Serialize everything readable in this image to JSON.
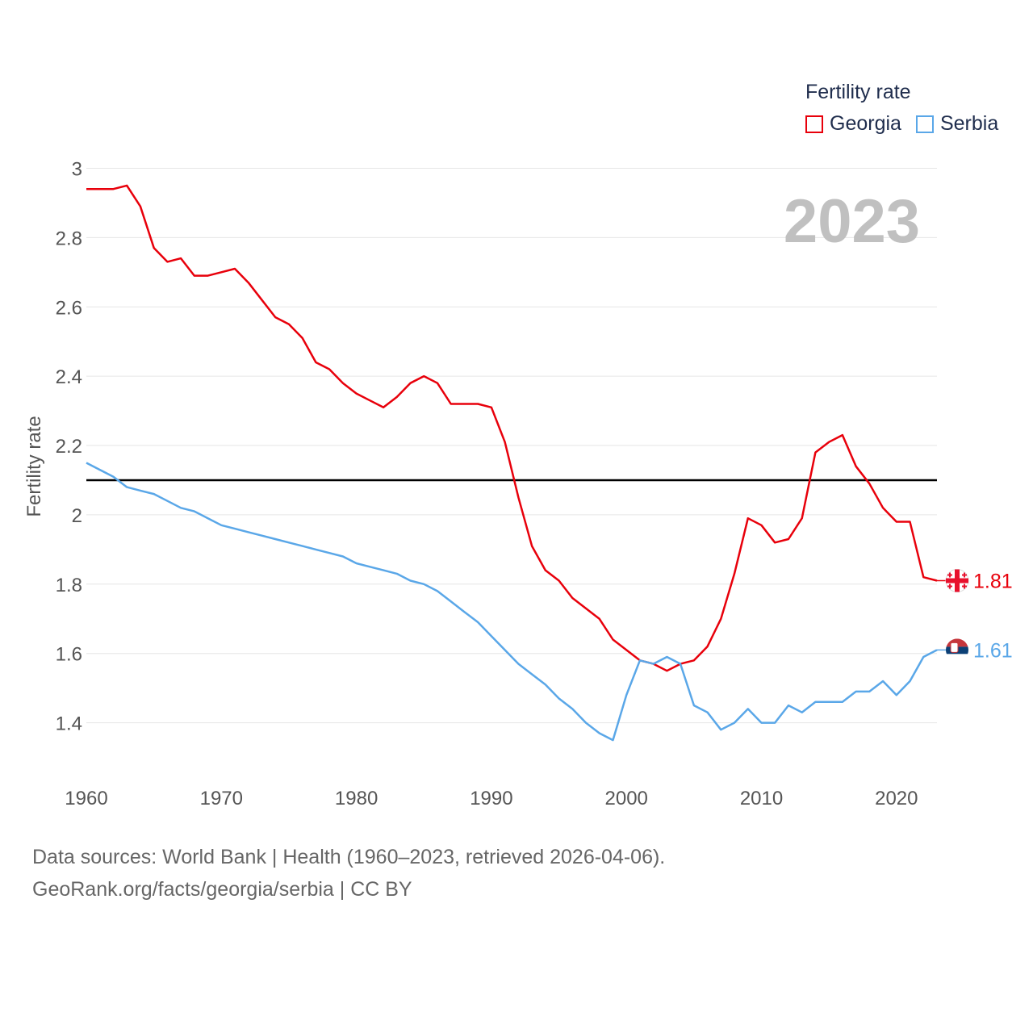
{
  "chart_data": {
    "type": "line",
    "title": "",
    "xlabel": "",
    "ylabel": "Fertility rate",
    "xlim": [
      1960,
      2023
    ],
    "ylim": [
      1.25,
      3.05
    ],
    "xticks": [
      1960,
      1970,
      1980,
      1990,
      2000,
      2010,
      2020
    ],
    "yticks": [
      1.4,
      1.6,
      1.8,
      2,
      2.2,
      2.4,
      2.6,
      2.8,
      3
    ],
    "ytick_labels": [
      "1.4",
      "1.6",
      "1.8",
      "2",
      "2.2",
      "2.4",
      "2.6",
      "2.8",
      "3"
    ],
    "reference_line": 2.1,
    "year_label": "2023",
    "legend_title": "Fertility rate",
    "x": [
      1960,
      1961,
      1962,
      1963,
      1964,
      1965,
      1966,
      1967,
      1968,
      1969,
      1970,
      1971,
      1972,
      1973,
      1974,
      1975,
      1976,
      1977,
      1978,
      1979,
      1980,
      1981,
      1982,
      1983,
      1984,
      1985,
      1986,
      1987,
      1988,
      1989,
      1990,
      1991,
      1992,
      1993,
      1994,
      1995,
      1996,
      1997,
      1998,
      1999,
      2000,
      2001,
      2002,
      2003,
      2004,
      2005,
      2006,
      2007,
      2008,
      2009,
      2010,
      2011,
      2012,
      2013,
      2014,
      2015,
      2016,
      2017,
      2018,
      2019,
      2020,
      2021,
      2022,
      2023
    ],
    "series": [
      {
        "name": "Georgia",
        "color": "#e8000b",
        "end_label": "1.81",
        "values": [
          2.94,
          2.94,
          2.94,
          2.95,
          2.89,
          2.77,
          2.73,
          2.74,
          2.69,
          2.69,
          2.7,
          2.71,
          2.67,
          2.62,
          2.57,
          2.55,
          2.51,
          2.44,
          2.42,
          2.38,
          2.35,
          2.33,
          2.31,
          2.34,
          2.38,
          2.4,
          2.38,
          2.32,
          2.32,
          2.32,
          2.31,
          2.21,
          2.05,
          1.91,
          1.84,
          1.81,
          1.76,
          1.73,
          1.7,
          1.64,
          1.61,
          1.58,
          1.57,
          1.55,
          1.57,
          1.58,
          1.62,
          1.7,
          1.83,
          1.99,
          1.97,
          1.92,
          1.93,
          1.99,
          2.18,
          2.21,
          2.23,
          2.14,
          2.09,
          2.02,
          1.98,
          1.98,
          1.82,
          1.81
        ]
      },
      {
        "name": "Serbia",
        "color": "#5aa7e8",
        "end_label": "1.61",
        "values": [
          2.15,
          2.13,
          2.11,
          2.08,
          2.07,
          2.06,
          2.04,
          2.02,
          2.01,
          1.99,
          1.97,
          1.96,
          1.95,
          1.94,
          1.93,
          1.92,
          1.91,
          1.9,
          1.89,
          1.88,
          1.86,
          1.85,
          1.84,
          1.83,
          1.81,
          1.8,
          1.78,
          1.75,
          1.72,
          1.69,
          1.65,
          1.61,
          1.57,
          1.54,
          1.51,
          1.47,
          1.44,
          1.4,
          1.37,
          1.35,
          1.48,
          1.58,
          1.57,
          1.59,
          1.57,
          1.45,
          1.43,
          1.38,
          1.4,
          1.44,
          1.4,
          1.4,
          1.45,
          1.43,
          1.46,
          1.46,
          1.46,
          1.49,
          1.49,
          1.52,
          1.48,
          1.52,
          1.59,
          1.61
        ]
      }
    ]
  },
  "footer": {
    "line1": "Data sources: World Bank | Health (1960–2023, retrieved 2026-04-06).",
    "line2": "GeoRank.org/facts/georgia/serbia | CC BY"
  }
}
